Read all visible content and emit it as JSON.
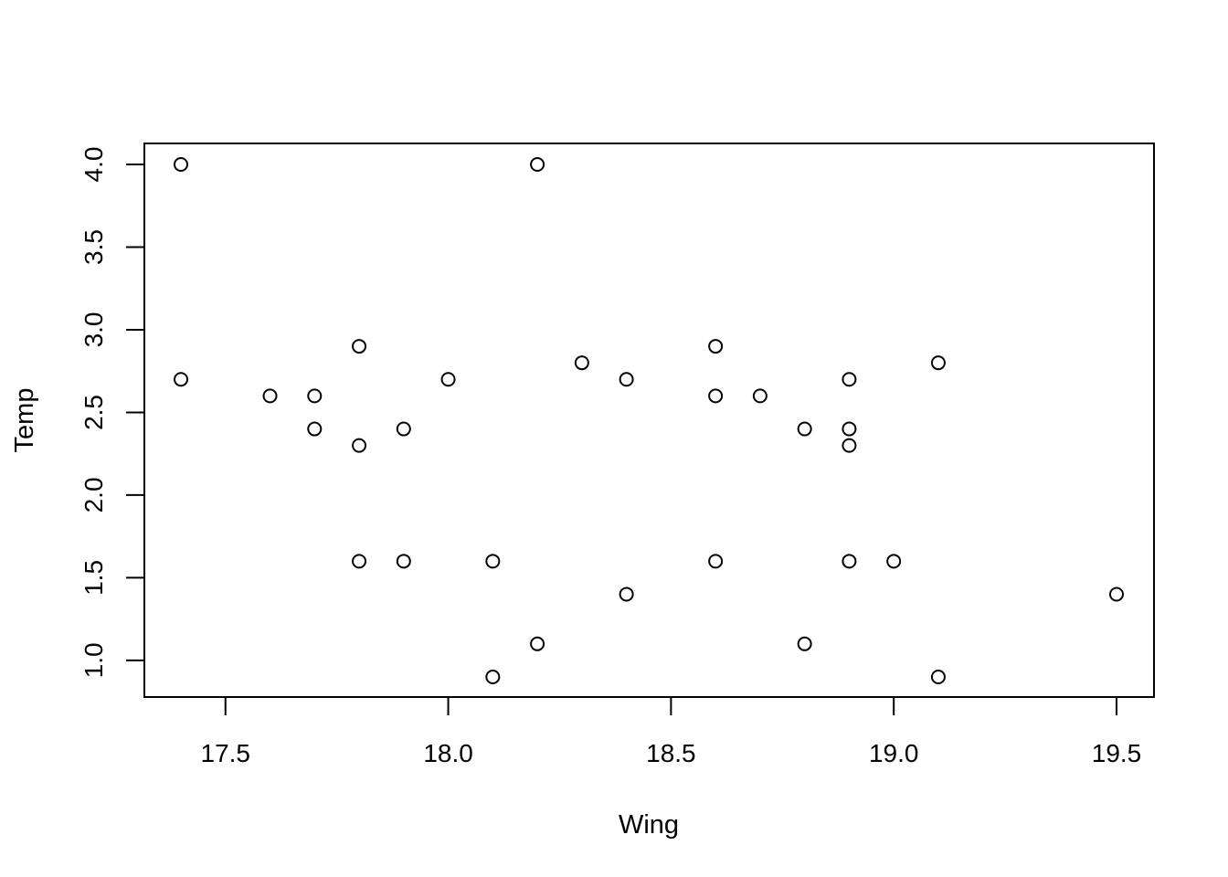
{
  "chart_data": {
    "type": "scatter",
    "title": "",
    "xlabel": "Wing",
    "ylabel": "Temp",
    "xlim": [
      17.4,
      19.5
    ],
    "ylim": [
      0.9,
      4.0
    ],
    "xticks": [
      "17.5",
      "18.0",
      "18.5",
      "19.0",
      "19.5"
    ],
    "yticks": [
      "1.0",
      "1.5",
      "2.0",
      "2.5",
      "3.0",
      "3.5",
      "4.0"
    ],
    "grid": false,
    "marker": "open-circle",
    "points": [
      {
        "x": 17.4,
        "y": 4.0
      },
      {
        "x": 17.4,
        "y": 2.7
      },
      {
        "x": 17.6,
        "y": 2.6
      },
      {
        "x": 17.7,
        "y": 2.6
      },
      {
        "x": 17.7,
        "y": 2.4
      },
      {
        "x": 17.8,
        "y": 2.9
      },
      {
        "x": 17.8,
        "y": 2.3
      },
      {
        "x": 17.8,
        "y": 1.6
      },
      {
        "x": 17.9,
        "y": 2.4
      },
      {
        "x": 17.9,
        "y": 1.6
      },
      {
        "x": 18.0,
        "y": 2.7
      },
      {
        "x": 18.1,
        "y": 1.6
      },
      {
        "x": 18.1,
        "y": 0.9
      },
      {
        "x": 18.2,
        "y": 4.0
      },
      {
        "x": 18.2,
        "y": 1.1
      },
      {
        "x": 18.3,
        "y": 2.8
      },
      {
        "x": 18.4,
        "y": 2.7
      },
      {
        "x": 18.4,
        "y": 1.4
      },
      {
        "x": 18.6,
        "y": 2.9
      },
      {
        "x": 18.6,
        "y": 2.6
      },
      {
        "x": 18.6,
        "y": 1.6
      },
      {
        "x": 18.7,
        "y": 2.6
      },
      {
        "x": 18.8,
        "y": 2.4
      },
      {
        "x": 18.8,
        "y": 1.1
      },
      {
        "x": 18.9,
        "y": 2.7
      },
      {
        "x": 18.9,
        "y": 2.4
      },
      {
        "x": 18.9,
        "y": 2.3
      },
      {
        "x": 18.9,
        "y": 1.6
      },
      {
        "x": 19.0,
        "y": 1.6
      },
      {
        "x": 19.1,
        "y": 2.8
      },
      {
        "x": 19.1,
        "y": 0.9
      },
      {
        "x": 19.5,
        "y": 1.4
      }
    ]
  }
}
